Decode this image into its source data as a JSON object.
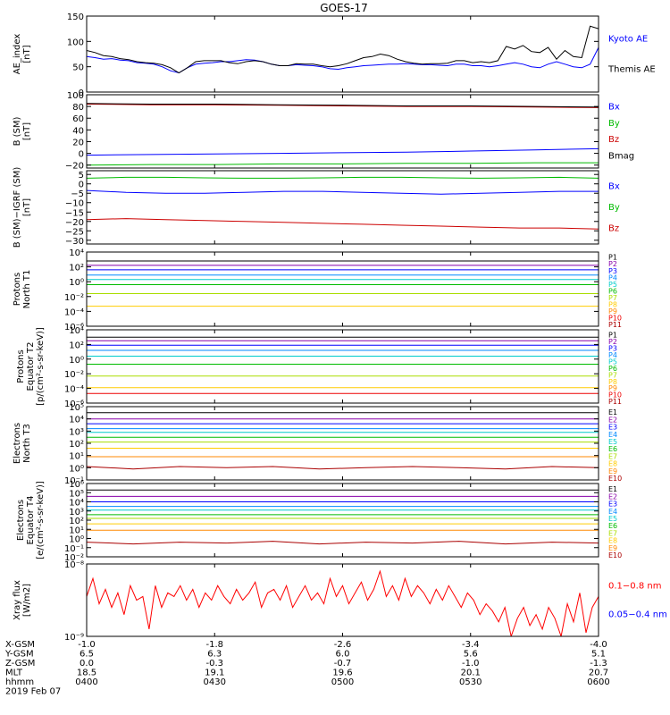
{
  "title": "GOES-17",
  "footer": {
    "rows": [
      {
        "label": "X-GSM",
        "values": [
          "-1.0",
          "-1.8",
          "-2.6",
          "-3.4",
          "-4.0"
        ]
      },
      {
        "label": "Y-GSM",
        "values": [
          "6.5",
          "6.3",
          "6.0",
          "5.6",
          "5.1"
        ]
      },
      {
        "label": "Z-GSM",
        "values": [
          "0.0",
          "-0.3",
          "-0.7",
          "-1.0",
          "-1.3"
        ]
      },
      {
        "label": "MLT",
        "values": [
          "18.5",
          "19.1",
          "19.6",
          "20.1",
          "20.7"
        ]
      },
      {
        "label": "hhmm",
        "values": [
          "0400",
          "0430",
          "0500",
          "0530",
          "0600"
        ]
      }
    ],
    "date": "2019 Feb 07"
  },
  "chart_data": [
    {
      "type": "line",
      "scale": "linear",
      "ylabel": "AE_index\n[nT]",
      "ylim": [
        0,
        150
      ],
      "ticks": [
        "150",
        "100",
        "50",
        "0"
      ],
      "tick_values": [
        150,
        100,
        50,
        0
      ],
      "series": [
        {
          "name": "Kyoto AE",
          "color": "#0000ff",
          "values": [
            70,
            68,
            65,
            66,
            63,
            62,
            58,
            57,
            55,
            50,
            42,
            38,
            48,
            55,
            57,
            58,
            60,
            60,
            62,
            64,
            63,
            60,
            55,
            52,
            52,
            54,
            53,
            52,
            50,
            46,
            45,
            48,
            50,
            52,
            53,
            54,
            55,
            55,
            56,
            55,
            54,
            54,
            53,
            52,
            55,
            55,
            52,
            52,
            50,
            52,
            55,
            58,
            55,
            50,
            48,
            55,
            60,
            55,
            50,
            48,
            55,
            88
          ]
        },
        {
          "name": "Themis AE",
          "color": "#000000",
          "values": [
            82,
            78,
            72,
            70,
            66,
            64,
            60,
            58,
            57,
            54,
            48,
            38,
            48,
            60,
            62,
            62,
            62,
            58,
            56,
            60,
            62,
            60,
            55,
            52,
            52,
            56,
            55,
            55,
            52,
            50,
            52,
            56,
            62,
            68,
            70,
            75,
            72,
            65,
            60,
            57,
            55,
            56,
            56,
            57,
            62,
            62,
            58,
            60,
            58,
            62,
            90,
            85,
            92,
            80,
            78,
            88,
            65,
            82,
            70,
            68,
            130,
            125
          ]
        }
      ]
    },
    {
      "type": "line",
      "scale": "linear",
      "ylabel": "B (SM)\n[nT]",
      "ylim": [
        -25,
        100
      ],
      "ticks": [
        "100",
        "80",
        "60",
        "40",
        "20",
        "0",
        "−20"
      ],
      "tick_values": [
        100,
        80,
        60,
        40,
        20,
        0,
        -20
      ],
      "series": [
        {
          "name": "Bx",
          "color": "#0000ff",
          "values": [
            -3,
            -2,
            -1,
            0,
            1,
            2,
            4,
            6,
            8
          ]
        },
        {
          "name": "By",
          "color": "#00bb00",
          "values": [
            -20,
            -19,
            -19,
            -18,
            -18,
            -17,
            -17,
            -16,
            -16
          ]
        },
        {
          "name": "Bz",
          "color": "#cc0000",
          "values": [
            84,
            83,
            83,
            82,
            81,
            80,
            80,
            79,
            78
          ]
        },
        {
          "name": "Bmag",
          "color": "#000000",
          "values": [
            85,
            84,
            84,
            83,
            82,
            81,
            81,
            80,
            79
          ]
        }
      ]
    },
    {
      "type": "line",
      "scale": "linear",
      "ylabel": "B (SM)−IGRF (SM)\n[nT]",
      "ylim": [
        -32,
        7
      ],
      "ticks": [
        "5",
        "0",
        "−5",
        "−10",
        "−15",
        "−20",
        "−25",
        "−30"
      ],
      "tick_values": [
        5,
        0,
        -5,
        -10,
        -15,
        -20,
        -25,
        -30
      ],
      "series": [
        {
          "name": "Bx",
          "color": "#0000ff",
          "values": [
            -3.5,
            -4.5,
            -5,
            -5,
            -4.5,
            -4,
            -4,
            -4.5,
            -5,
            -5.5,
            -5,
            -4.5,
            -4,
            -4
          ]
        },
        {
          "name": "By",
          "color": "#00bb00",
          "values": [
            3,
            3.5,
            3.5,
            3.2,
            3,
            3,
            3.2,
            3.5,
            3.5,
            3.2,
            3,
            3.2,
            3.5,
            3
          ]
        },
        {
          "name": "Bz",
          "color": "#cc0000",
          "values": [
            -19,
            -18.5,
            -19,
            -19.5,
            -20,
            -20.5,
            -21,
            -21.5,
            -22,
            -22.5,
            -23,
            -23.5,
            -23.5,
            -24
          ]
        }
      ]
    },
    {
      "type": "line",
      "scale": "log",
      "ylabel": "Protons\nNorth T1",
      "ylim": [
        -6,
        4
      ],
      "ticks": [
        "10⁴",
        "10²",
        "10⁰",
        "10⁻²",
        "10⁻⁴",
        "10⁻⁶"
      ],
      "tick_values": [
        4,
        2,
        0,
        -2,
        -4,
        -6
      ],
      "series": [
        {
          "name": "P1",
          "color": "#000000",
          "values": [
            2.8
          ]
        },
        {
          "name": "P2",
          "color": "#8800aa",
          "values": [
            2.2
          ]
        },
        {
          "name": "P3",
          "color": "#0000ff",
          "values": [
            1.6
          ]
        },
        {
          "name": "P4",
          "color": "#0088ff",
          "values": [
            0.9
          ]
        },
        {
          "name": "P5",
          "color": "#00cccc",
          "values": [
            0.3
          ]
        },
        {
          "name": "P6",
          "color": "#00bb00",
          "values": [
            -0.4
          ]
        },
        {
          "name": "P7",
          "color": "#aadd00",
          "values": [
            -1.6
          ]
        },
        {
          "name": "P8",
          "color": "#ffcc00",
          "values": [
            -3.3
          ]
        },
        {
          "name": "P9",
          "color": "#ff8800",
          "values": []
        },
        {
          "name": "P10",
          "color": "#ee0000",
          "values": []
        },
        {
          "name": "P11",
          "color": "#aa0000",
          "values": []
        }
      ]
    },
    {
      "type": "line",
      "scale": "log",
      "ylabel": "Protons\nEquator T2\n[p/(cm²-s-sr-keV)]",
      "ylim": [
        -6,
        4
      ],
      "ticks": [
        "10⁴",
        "10²",
        "10⁰",
        "10⁻²",
        "10⁻⁴",
        "10⁻⁶"
      ],
      "tick_values": [
        4,
        2,
        0,
        -2,
        -4,
        -6
      ],
      "series": [
        {
          "name": "P1",
          "color": "#000000",
          "values": [
            3.0
          ]
        },
        {
          "name": "P2",
          "color": "#8800aa",
          "values": [
            2.5
          ]
        },
        {
          "name": "P3",
          "color": "#0000ff",
          "values": [
            1.9
          ]
        },
        {
          "name": "P4",
          "color": "#0088ff",
          "values": [
            1.2
          ]
        },
        {
          "name": "P5",
          "color": "#00cccc",
          "values": [
            0.4
          ]
        },
        {
          "name": "P6",
          "color": "#00bb00",
          "values": [
            -0.7
          ]
        },
        {
          "name": "P7",
          "color": "#aadd00",
          "values": [
            -2.3
          ]
        },
        {
          "name": "P8",
          "color": "#ffcc00",
          "values": [
            -3.9
          ]
        },
        {
          "name": "P9",
          "color": "#ff8800",
          "values": []
        },
        {
          "name": "P10",
          "color": "#ee0000",
          "values": [
            -4.7
          ]
        },
        {
          "name": "P11",
          "color": "#aa0000",
          "values": []
        }
      ]
    },
    {
      "type": "line",
      "scale": "log",
      "ylabel": "Electrons\nNorth T3",
      "ylim": [
        -1,
        5
      ],
      "ticks": [
        "10⁵",
        "10⁴",
        "10³",
        "10²",
        "10¹",
        "10⁰",
        "10⁻¹"
      ],
      "tick_values": [
        5,
        4,
        3,
        2,
        1,
        0,
        -1
      ],
      "series": [
        {
          "name": "E1",
          "color": "#000000",
          "values": [
            4.5
          ]
        },
        {
          "name": "E2",
          "color": "#8800aa",
          "values": [
            4.0
          ]
        },
        {
          "name": "E3",
          "color": "#0000ff",
          "values": [
            3.6
          ]
        },
        {
          "name": "E4",
          "color": "#0088ff",
          "values": [
            3.2
          ]
        },
        {
          "name": "E5",
          "color": "#00cccc",
          "values": [
            2.9
          ]
        },
        {
          "name": "E6",
          "color": "#00bb00",
          "values": [
            2.5
          ]
        },
        {
          "name": "E7",
          "color": "#aadd00",
          "values": [
            2.1
          ]
        },
        {
          "name": "E8",
          "color": "#ffcc00",
          "values": [
            1.6
          ]
        },
        {
          "name": "E9",
          "color": "#ff8800",
          "values": [
            0.9
          ]
        },
        {
          "name": "E10",
          "color": "#aa0000",
          "values": [
            0.1,
            -0.1,
            0.1,
            0.0,
            0.1,
            -0.1,
            0.0,
            0.1,
            0.0,
            -0.1,
            0.1,
            0.0
          ]
        }
      ]
    },
    {
      "type": "line",
      "scale": "log",
      "ylabel": "Electrons\nEquator T4\n[e/(cm²-s-sr-keV)]",
      "ylim": [
        -2,
        6
      ],
      "ticks": [
        "10⁶",
        "10⁵",
        "10⁴",
        "10³",
        "10²",
        "10¹",
        "10⁰",
        "10⁻¹",
        "10⁻²"
      ],
      "tick_values": [
        6,
        5,
        4,
        3,
        2,
        1,
        0,
        -1,
        -2
      ],
      "series": [
        {
          "name": "E1",
          "color": "#000000",
          "values": [
            5.3
          ]
        },
        {
          "name": "E2",
          "color": "#8800aa",
          "values": [
            4.6
          ]
        },
        {
          "name": "E3",
          "color": "#0000ff",
          "values": [
            4.0
          ]
        },
        {
          "name": "E4",
          "color": "#0088ff",
          "values": [
            3.5
          ]
        },
        {
          "name": "E5",
          "color": "#00cccc",
          "values": [
            3.1
          ]
        },
        {
          "name": "E6",
          "color": "#00bb00",
          "values": [
            2.6
          ]
        },
        {
          "name": "E7",
          "color": "#aadd00",
          "values": [
            2.2
          ]
        },
        {
          "name": "E8",
          "color": "#ffcc00",
          "values": [
            1.6
          ]
        },
        {
          "name": "E9",
          "color": "#ff8800",
          "values": [
            0.9
          ]
        },
        {
          "name": "E10",
          "color": "#aa0000",
          "values": [
            -0.4,
            -0.6,
            -0.4,
            -0.5,
            -0.3,
            -0.6,
            -0.4,
            -0.5,
            -0.3,
            -0.6,
            -0.4,
            -0.5
          ]
        }
      ]
    },
    {
      "type": "line",
      "scale": "log",
      "ylabel": "Xray flux\n[W/m2]",
      "ylim": [
        -9,
        -8
      ],
      "ticks": [
        "10⁻⁸",
        "10⁻⁹"
      ],
      "tick_values": [
        -8,
        -9
      ],
      "series": [
        {
          "name": "0.1−0.8 nm",
          "color": "#ff0000",
          "values": [
            -8.45,
            -8.2,
            -8.55,
            -8.35,
            -8.6,
            -8.4,
            -8.7,
            -8.3,
            -8.5,
            -8.45,
            -8.9,
            -8.3,
            -8.6,
            -8.4,
            -8.45,
            -8.3,
            -8.5,
            -8.35,
            -8.6,
            -8.4,
            -8.5,
            -8.3,
            -8.45,
            -8.55,
            -8.35,
            -8.5,
            -8.4,
            -8.25,
            -8.6,
            -8.4,
            -8.35,
            -8.5,
            -8.3,
            -8.6,
            -8.45,
            -8.3,
            -8.5,
            -8.4,
            -8.55,
            -8.2,
            -8.45,
            -8.3,
            -8.55,
            -8.4,
            -8.25,
            -8.5,
            -8.35,
            -8.1,
            -8.45,
            -8.3,
            -8.5,
            -8.2,
            -8.45,
            -8.3,
            -8.4,
            -8.55,
            -8.35,
            -8.5,
            -8.3,
            -8.45,
            -8.6,
            -8.4,
            -8.5,
            -8.7,
            -8.55,
            -8.65,
            -8.8,
            -8.6,
            -9.0,
            -8.75,
            -8.6,
            -8.85,
            -8.7,
            -8.9,
            -8.6,
            -8.75,
            -9.0,
            -8.55,
            -8.8,
            -8.4,
            -8.95,
            -8.6,
            -8.45
          ]
        },
        {
          "name": "0.05−0.4 nm",
          "color": "#0000ff",
          "values": []
        }
      ]
    }
  ]
}
